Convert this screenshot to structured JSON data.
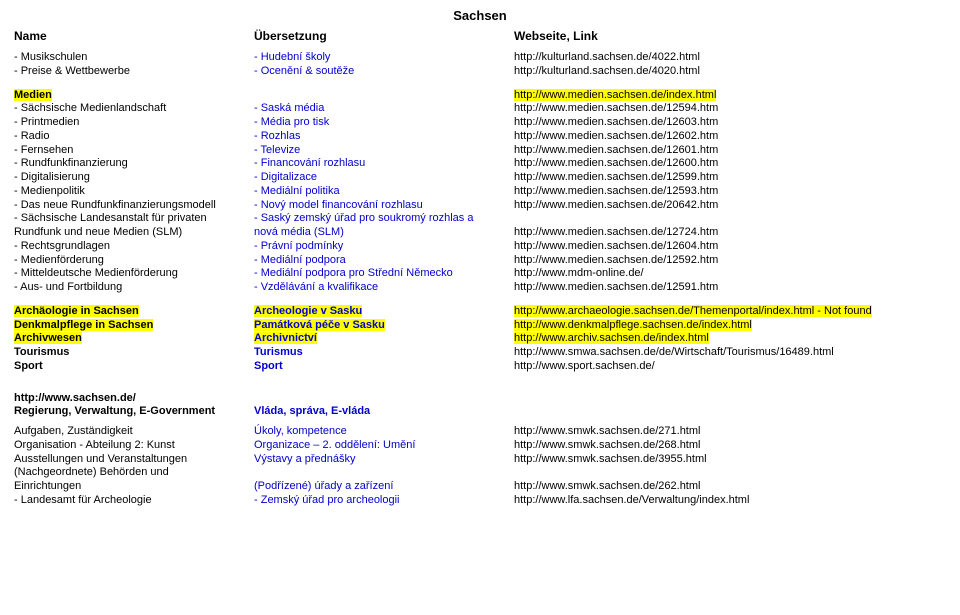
{
  "title": "Sachsen",
  "headers": {
    "c1": "Name",
    "c2": "Übersetzung",
    "c3": "Webseite, Link"
  },
  "section1": [
    {
      "c1": "- Musikschulen",
      "c2": "- Hudební školy",
      "c3": "http://kulturland.sachsen.de/4022.html"
    },
    {
      "c1": "- Preise & Wettbewerbe",
      "c2": "- Ocenění & soutěže",
      "c3": "http://kulturland.sachsen.de/4020.html"
    }
  ],
  "section2_top": {
    "c1": "Medien",
    "c3": "http://www.medien.sachsen.de/index.html"
  },
  "section2": [
    {
      "c1": "- Sächsische Medienlandschaft",
      "c2": "- Saská média",
      "c3": "http://www.medien.sachsen.de/12594.htm"
    },
    {
      "c1": "- Printmedien",
      "c2": "- Média pro tisk",
      "c3": "http://www.medien.sachsen.de/12603.htm"
    },
    {
      "c1": "- Radio",
      "c2": "- Rozhlas",
      "c3": "http://www.medien.sachsen.de/12602.htm"
    },
    {
      "c1": "- Fernsehen",
      "c2": "- Televize",
      "c3": "http://www.medien.sachsen.de/12601.htm"
    },
    {
      "c1": "- Rundfunkfinanzierung",
      "c2": "- Financování rozhlasu",
      "c3": "http://www.medien.sachsen.de/12600.htm"
    },
    {
      "c1": "- Digitalisierung",
      "c2": "- Digitalizace",
      "c3": "http://www.medien.sachsen.de/12599.htm"
    },
    {
      "c1": "- Medienpolitik",
      "c2": "- Mediální politika",
      "c3": "http://www.medien.sachsen.de/12593.htm"
    },
    {
      "c1": "- Das neue Rundfunkfinanzierungsmodell",
      "c2": "- Nový model financování rozhlasu",
      "c3": "http://www.medien.sachsen.de/20642.htm"
    },
    {
      "c1": "- Sächsische Landesanstalt für privaten",
      "c2": "- Saský zemský úřad pro soukromý rozhlas a",
      "c3": ""
    },
    {
      "c1": "Rundfunk und neue Medien (SLM)",
      "c2": "nová média (SLM)",
      "c3": "http://www.medien.sachsen.de/12724.htm"
    },
    {
      "c1": "- Rechtsgrundlagen",
      "c2": "- Právní podmínky",
      "c3": "http://www.medien.sachsen.de/12604.htm"
    },
    {
      "c1": "- Medienförderung",
      "c2": "- Mediální podpora",
      "c3": "http://www.medien.sachsen.de/12592.htm"
    },
    {
      "c1": "- Mitteldeutsche Medienförderung",
      "c2": "- Mediální podpora pro Střední Německo",
      "c3": "http://www.mdm-online.de/"
    },
    {
      "c1": "- Aus- und Fortbildung",
      "c2": "- Vzdělávání a kvalifikace",
      "c3": "http://www.medien.sachsen.de/12591.htm"
    }
  ],
  "section3": [
    {
      "c1": "Archäologie in Sachsen",
      "c2": "Archeologie v Sasku",
      "c3": "http://www.archaeologie.sachsen.de/Themenportal/index.html - Not found",
      "hl": true,
      "bold": true
    },
    {
      "c1": "Denkmalpflege in Sachsen",
      "c2": "Památková péče v Sasku",
      "c3": "http://www.denkmalpflege.sachsen.de/index.html",
      "hl": true,
      "bold": true
    },
    {
      "c1": "Archivwesen",
      "c2": "Archivnictví",
      "c3": "http://www.archiv.sachsen.de/index.html",
      "hl": true,
      "bold": true
    },
    {
      "c1": "Tourismus",
      "c2": "Turismus",
      "c3": "http://www.smwa.sachsen.de/de/Wirtschaft/Tourismus/16489.html",
      "bold": true
    },
    {
      "c1": "Sport",
      "c2": "Sport",
      "c3": "http://www.sport.sachsen.de/",
      "bold": true
    }
  ],
  "section4_top": [
    {
      "c1": "http://www.sachsen.de/",
      "c2": "",
      "c3": "",
      "bold": true
    },
    {
      "c1": "Regierung, Verwaltung, E-Government",
      "c2": "Vláda, správa, E-vláda",
      "c3": "",
      "bold": true
    }
  ],
  "section4": [
    {
      "c1": "Aufgaben, Zuständigkeit",
      "c2": "Úkoly, kompetence",
      "c3": "http://www.smwk.sachsen.de/271.html"
    },
    {
      "c1": "Organisation - Abteilung 2: Kunst",
      "c2": "Organizace – 2. oddělení: Umění",
      "c3": "http://www.smwk.sachsen.de/268.html"
    },
    {
      "c1": "Ausstellungen und Veranstaltungen",
      "c2": "Výstavy a přednášky",
      "c3": "http://www.smwk.sachsen.de/3955.html"
    },
    {
      "c1": "(Nachgeordnete) Behörden und",
      "c2": "",
      "c3": ""
    },
    {
      "c1": "Einrichtungen",
      "c2": "(Podřízené) úřady a zařízení",
      "c3": "http://www.smwk.sachsen.de/262.html"
    },
    {
      "c1": "- Landesamt für Archeologie",
      "c2": "- Zemský úřad pro archeologii",
      "c3": "http://www.lfa.sachsen.de/Verwaltung/index.html"
    }
  ],
  "colors": {
    "blue": "#0000cc",
    "highlight": "#ffff00",
    "text": "#000000",
    "bg": "#ffffff"
  }
}
